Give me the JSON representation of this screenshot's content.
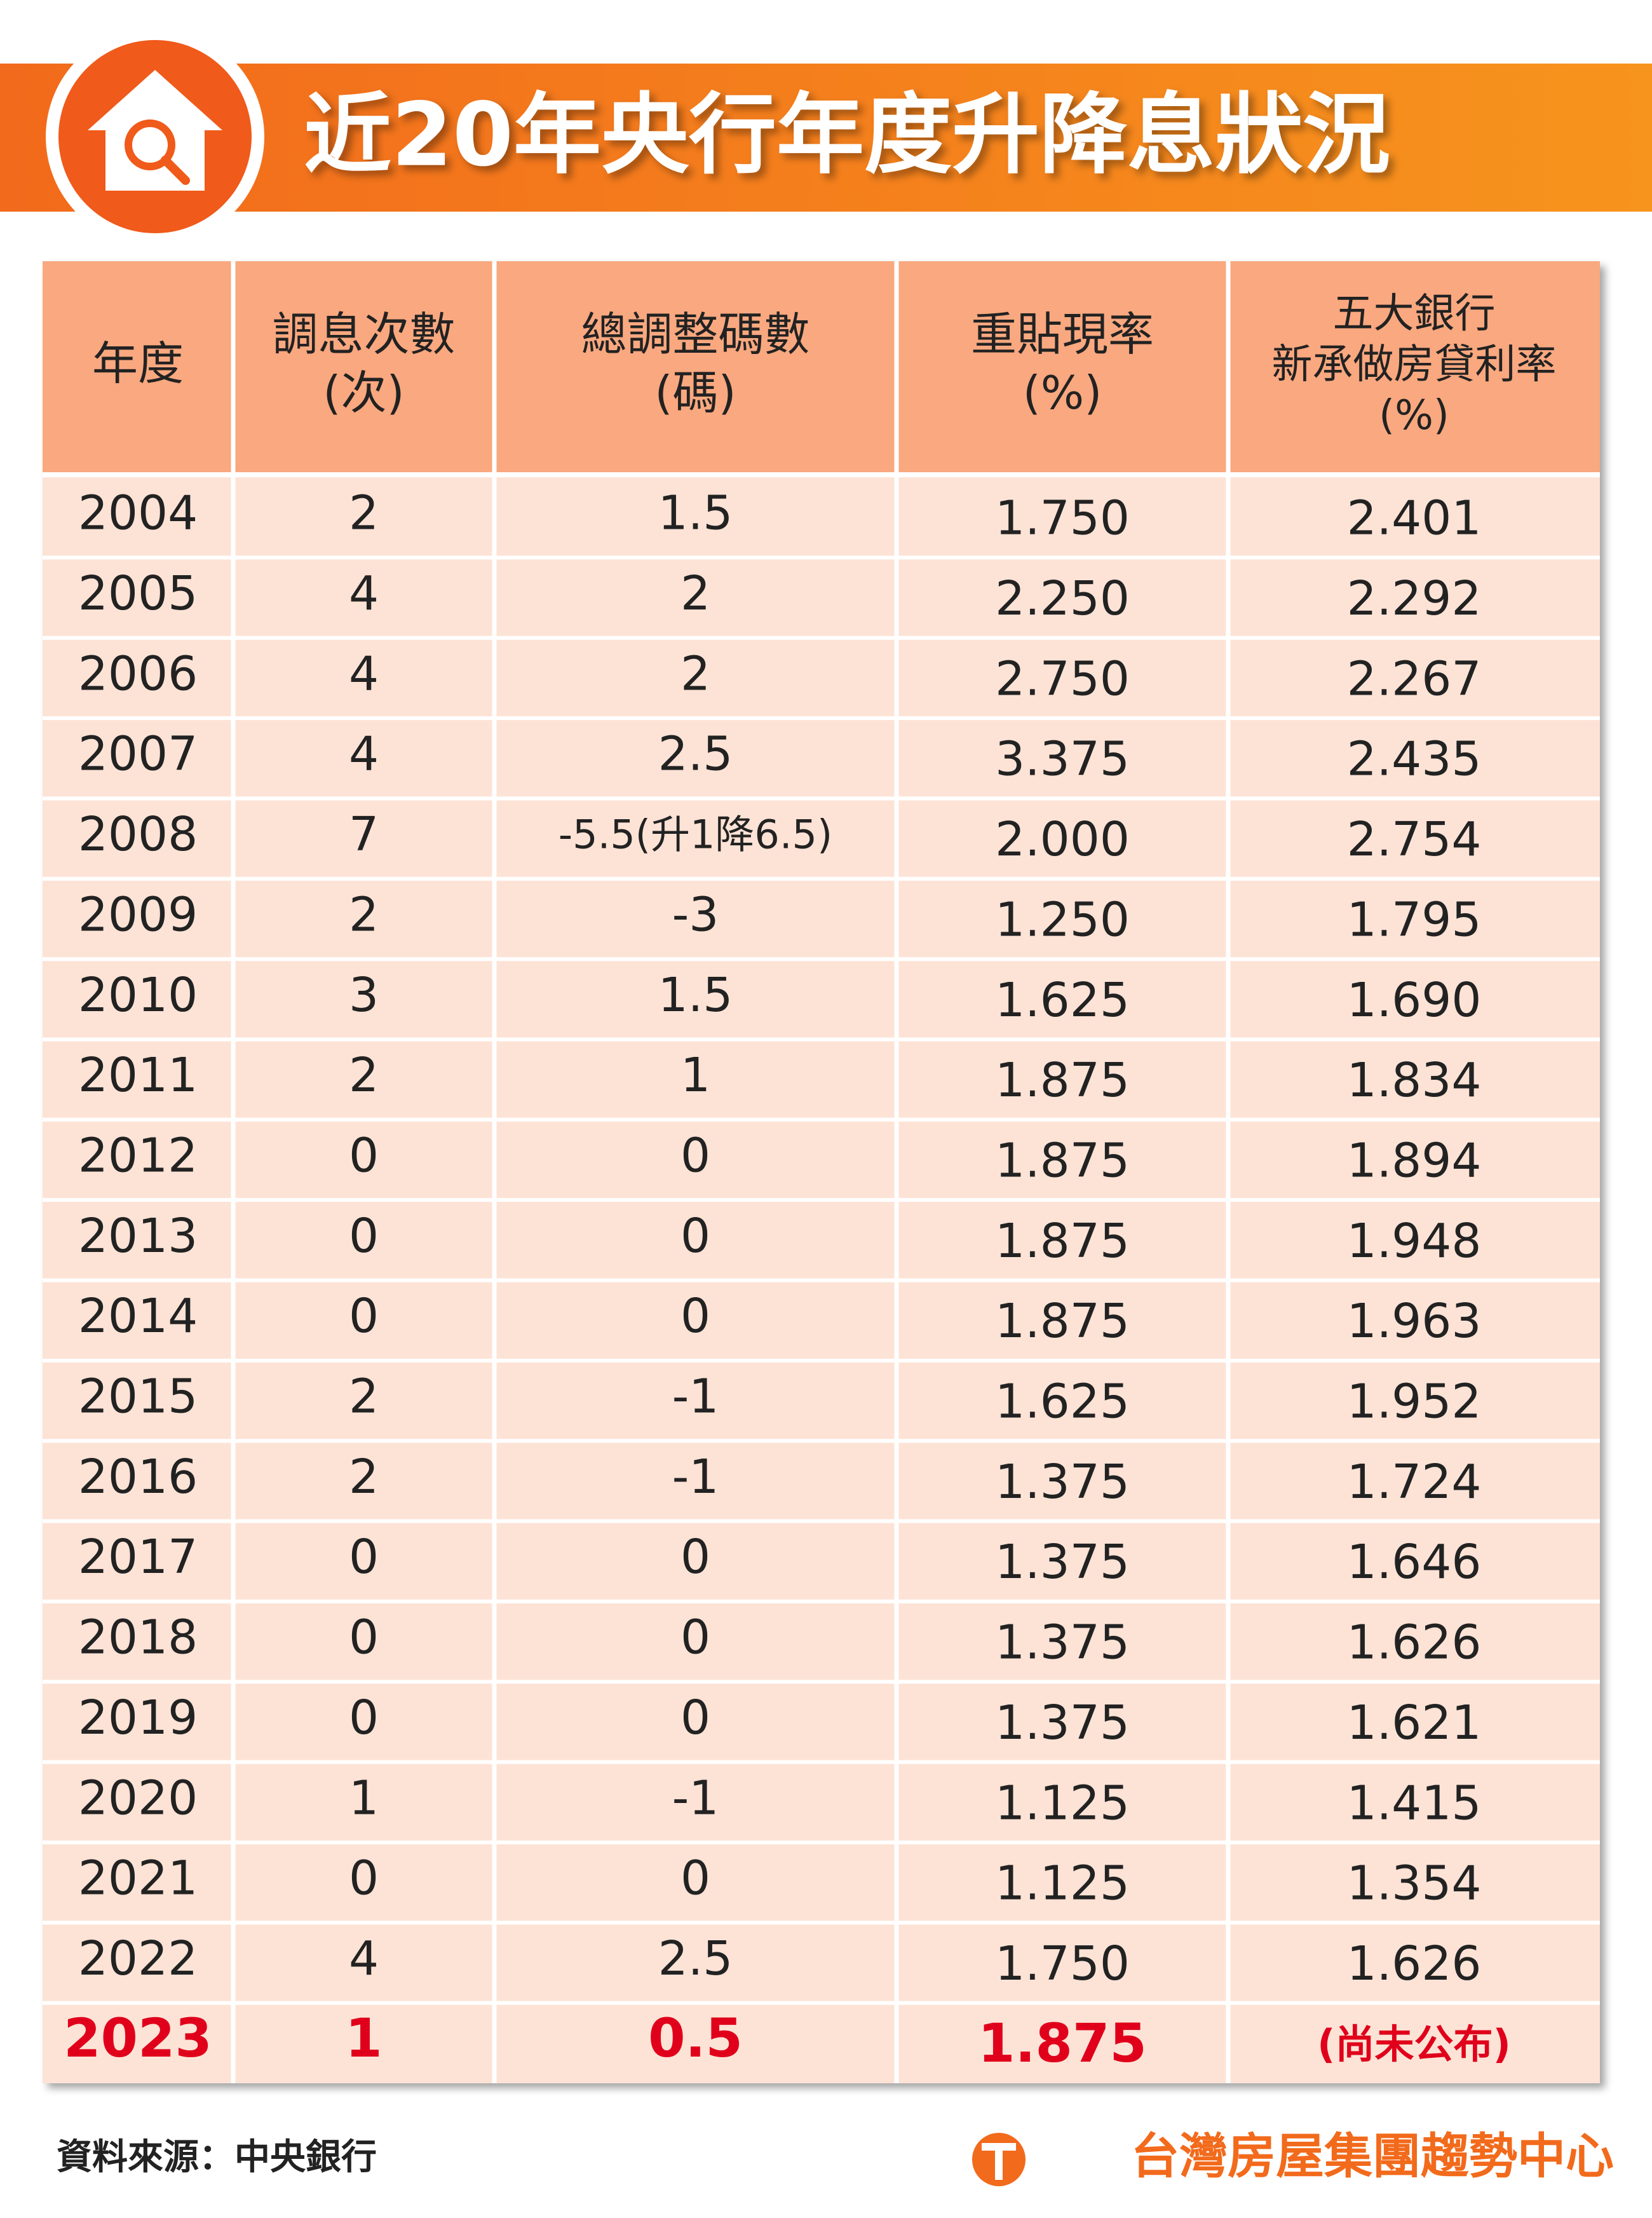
{
  "header": {
    "title": "近20年央行年度升降息狀況"
  },
  "table": {
    "columns": [
      [
        "年度"
      ],
      [
        "調息次數",
        "(次)"
      ],
      [
        "總調整碼數",
        "(碼)"
      ],
      [
        "重貼現率",
        "(%)"
      ],
      [
        "五大銀行",
        "新承做房貸利率",
        "(%)"
      ]
    ],
    "rows": [
      [
        "2004",
        "2",
        "1.5",
        "1.750",
        "2.401"
      ],
      [
        "2005",
        "4",
        "2",
        "2.250",
        "2.292"
      ],
      [
        "2006",
        "4",
        "2",
        "2.750",
        "2.267"
      ],
      [
        "2007",
        "4",
        "2.5",
        "3.375",
        "2.435"
      ],
      [
        "2008",
        "7",
        "-5.5(升1降6.5)",
        "2.000",
        "2.754"
      ],
      [
        "2009",
        "2",
        "-3",
        "1.250",
        "1.795"
      ],
      [
        "2010",
        "3",
        "1.5",
        "1.625",
        "1.690"
      ],
      [
        "2011",
        "2",
        "1",
        "1.875",
        "1.834"
      ],
      [
        "2012",
        "0",
        "0",
        "1.875",
        "1.894"
      ],
      [
        "2013",
        "0",
        "0",
        "1.875",
        "1.948"
      ],
      [
        "2014",
        "0",
        "0",
        "1.875",
        "1.963"
      ],
      [
        "2015",
        "2",
        "-1",
        "1.625",
        "1.952"
      ],
      [
        "2016",
        "2",
        "-1",
        "1.375",
        "1.724"
      ],
      [
        "2017",
        "0",
        "0",
        "1.375",
        "1.646"
      ],
      [
        "2018",
        "0",
        "0",
        "1.375",
        "1.626"
      ],
      [
        "2019",
        "0",
        "0",
        "1.375",
        "1.621"
      ],
      [
        "2020",
        "1",
        "-1",
        "1.125",
        "1.415"
      ],
      [
        "2021",
        "0",
        "0",
        "1.125",
        "1.354"
      ],
      [
        "2022",
        "4",
        "2.5",
        "1.750",
        "1.626"
      ],
      [
        "2023",
        "1",
        "0.5",
        "1.875",
        "(尚未公布)"
      ]
    ]
  },
  "footer": {
    "source": "資料來源：中央銀行",
    "brand": "台灣房屋集團趨勢中心"
  }
}
